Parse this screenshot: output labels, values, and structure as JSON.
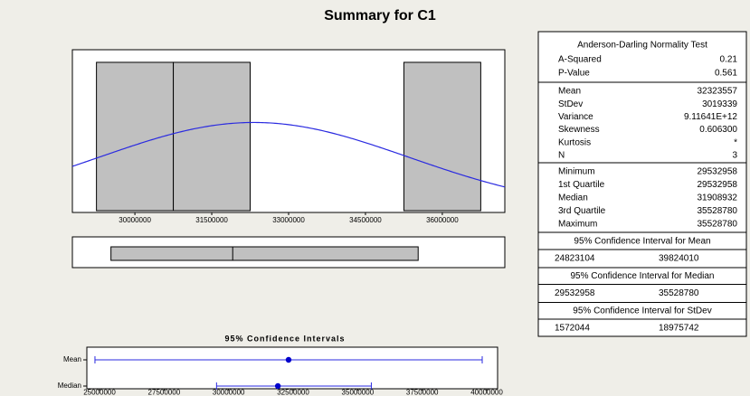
{
  "title": "Summary for C1",
  "chart_data": [
    {
      "type": "histogram",
      "bins": [
        29250000,
        30750000,
        32250000,
        33750000,
        35250000,
        36750000
      ],
      "counts": [
        1,
        1,
        0,
        0,
        1
      ],
      "color": "#c0c0c0",
      "xlim": [
        28780000,
        37220000
      ],
      "ylim": [
        0,
        1.085
      ],
      "xticks": [
        30000000,
        31500000,
        33000000,
        34500000,
        36000000
      ],
      "fit": {
        "mean": 32323557,
        "sd": 3019339,
        "n": 3,
        "color": "#2a2ae0"
      }
    },
    {
      "type": "boxplot",
      "values": {
        "min": 29532958,
        "q1": 29532958,
        "median": 31908932,
        "q3": 35528780,
        "max": 35528780
      },
      "color": "#c0c0c0",
      "xlim": [
        28780000,
        37220000
      ]
    },
    {
      "type": "interval",
      "title": "95% Confidence Intervals",
      "categories": [
        "Mean",
        "Median"
      ],
      "values": [
        32323557,
        31908932
      ],
      "lower": [
        24823104,
        29532958
      ],
      "upper": [
        39824010,
        35528780
      ],
      "color": "#2a2ae0",
      "xlim": [
        24509000,
        40420000
      ],
      "xticks": [
        25000000,
        27500000,
        30000000,
        32500000,
        35000000,
        37500000,
        40000000
      ]
    }
  ],
  "stats": {
    "normality": {
      "title": "Anderson-Darling Normality Test",
      "rows": [
        [
          "A-Squared",
          "0.21"
        ],
        [
          "P-Value",
          "0.561"
        ]
      ]
    },
    "descriptive": {
      "rows": [
        [
          "Mean",
          "32323557"
        ],
        [
          "StDev",
          "3019339"
        ],
        [
          "Variance",
          "9.11641E+12"
        ],
        [
          "Skewness",
          "0.606300"
        ],
        [
          "Kurtosis",
          "*"
        ],
        [
          "N",
          "3"
        ]
      ]
    },
    "quantiles": {
      "rows": [
        [
          "Minimum",
          "29532958"
        ],
        [
          "1st Quartile",
          "29532958"
        ],
        [
          "Median",
          "31908932"
        ],
        [
          "3rd Quartile",
          "35528780"
        ],
        [
          "Maximum",
          "35528780"
        ]
      ]
    },
    "intervals": [
      {
        "title": "95% Confidence Interval for Mean",
        "values": [
          "24823104",
          "39824010"
        ]
      },
      {
        "title": "95% Confidence Interval for Median",
        "values": [
          "29532958",
          "35528780"
        ]
      },
      {
        "title": "95% Confidence Interval for StDev",
        "values": [
          "1572044",
          "18975742"
        ]
      }
    ]
  }
}
